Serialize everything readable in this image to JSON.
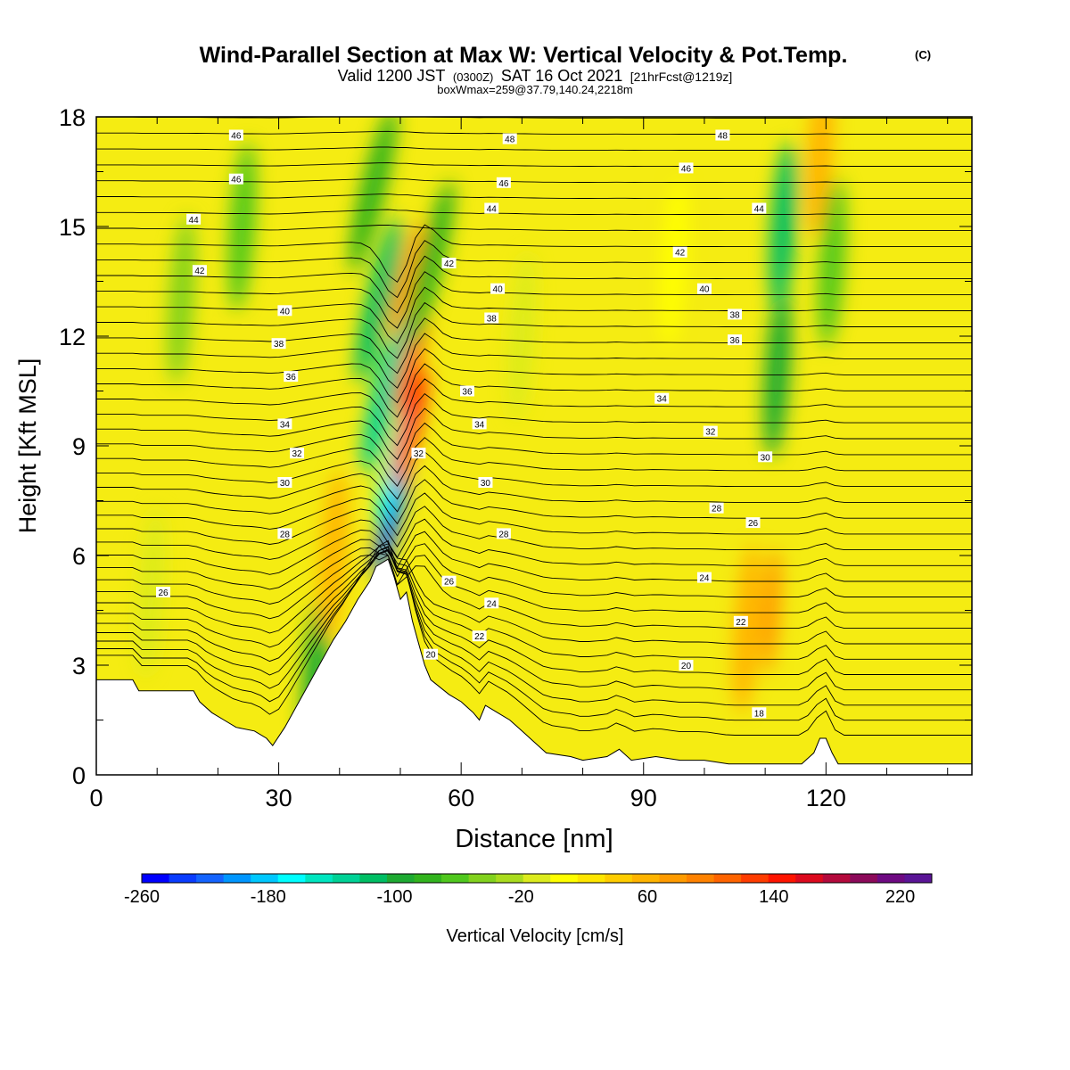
{
  "header": {
    "title": "Wind-Parallel Section at Max W: Vertical Velocity & Pot.Temp.",
    "copyright": "(C)",
    "valid_prefix": "Valid 1200 JST",
    "valid_utc": "(0300Z)",
    "valid_date": "SAT 16 Oct 2021",
    "forecast": "[21hrFcst@1219z]",
    "box_wmax": "boxWmax=259@37.79,140.24,2218m"
  },
  "chart_data": {
    "type": "heatmap",
    "xlabel": "Distance [nm]",
    "ylabel": "Height [Kft MSL]",
    "xlim": [
      0,
      144
    ],
    "ylim": [
      0,
      18
    ],
    "x_ticks": [
      0,
      30,
      60,
      90,
      120
    ],
    "y_ticks": [
      0,
      3,
      6,
      9,
      12,
      15,
      18
    ],
    "terrain_kft": {
      "x": [
        0,
        6,
        7,
        16,
        17,
        19,
        21,
        23,
        26,
        28,
        29,
        31,
        33,
        35,
        37,
        39,
        41,
        43,
        45,
        46,
        48,
        49,
        50,
        51,
        52,
        53,
        54,
        55,
        58,
        60,
        62,
        63,
        64,
        66,
        68,
        70,
        72,
        74,
        78,
        80,
        84,
        86,
        88,
        92,
        96,
        100,
        104,
        108,
        112,
        116,
        118,
        119,
        120,
        121,
        122,
        124,
        130,
        144
      ],
      "y": [
        2.6,
        2.6,
        2.3,
        2.3,
        2.0,
        1.7,
        1.5,
        1.3,
        1.2,
        1.0,
        0.8,
        1.3,
        1.9,
        2.5,
        3.1,
        3.7,
        4.2,
        4.8,
        5.3,
        5.7,
        5.9,
        5.4,
        4.8,
        5.0,
        4.2,
        3.6,
        3.0,
        2.6,
        2.2,
        2.0,
        1.7,
        1.5,
        1.9,
        1.7,
        1.5,
        1.2,
        0.9,
        0.6,
        0.5,
        0.4,
        0.5,
        0.7,
        0.4,
        0.5,
        0.4,
        0.4,
        0.3,
        0.3,
        0.3,
        0.3,
        0.6,
        1.0,
        1.0,
        0.6,
        0.3,
        0.3,
        0.3,
        0.3
      ]
    },
    "vertical_velocity_cells": [
      {
        "x": 48.5,
        "y": 7.0,
        "value": -220
      },
      {
        "x": 49.0,
        "y": 8.5,
        "value": -160
      },
      {
        "x": 47.5,
        "y": 10.5,
        "value": -110
      },
      {
        "x": 46.5,
        "y": 13.0,
        "value": -90
      },
      {
        "x": 45.5,
        "y": 16.0,
        "value": -60
      },
      {
        "x": 51.5,
        "y": 9.5,
        "value": 200
      },
      {
        "x": 52.0,
        "y": 11.5,
        "value": 170
      },
      {
        "x": 51.0,
        "y": 13.5,
        "value": 130
      },
      {
        "x": 55.0,
        "y": 14.0,
        "value": -50
      },
      {
        "x": 36.0,
        "y": 2.5,
        "value": -80
      },
      {
        "x": 39.0,
        "y": 6.0,
        "value": 100
      },
      {
        "x": 107.0,
        "y": 4.0,
        "value": 110
      },
      {
        "x": 111.0,
        "y": 4.5,
        "value": 130
      },
      {
        "x": 112.0,
        "y": 11.0,
        "value": -70
      },
      {
        "x": 113.0,
        "y": 15.0,
        "value": -90
      },
      {
        "x": 119.0,
        "y": 17.0,
        "value": 110
      },
      {
        "x": 121.0,
        "y": 14.0,
        "value": -40
      },
      {
        "x": 9.0,
        "y": 5.0,
        "value": 30
      },
      {
        "x": 24.0,
        "y": 15.0,
        "value": -30
      },
      {
        "x": 14.0,
        "y": 13.0,
        "value": -20
      },
      {
        "x": 70.0,
        "y": 12.0,
        "value": 30
      },
      {
        "x": 95.0,
        "y": 14.0,
        "value": 40
      }
    ],
    "theta_labels": [
      {
        "x": 23,
        "y": 17.5,
        "text": "46"
      },
      {
        "x": 23,
        "y": 16.3,
        "text": "46"
      },
      {
        "x": 16,
        "y": 15.2,
        "text": "44"
      },
      {
        "x": 17,
        "y": 13.8,
        "text": "42"
      },
      {
        "x": 31,
        "y": 12.7,
        "text": "40"
      },
      {
        "x": 30,
        "y": 11.8,
        "text": "38"
      },
      {
        "x": 32,
        "y": 10.9,
        "text": "36"
      },
      {
        "x": 31,
        "y": 9.6,
        "text": "34"
      },
      {
        "x": 33,
        "y": 8.8,
        "text": "32"
      },
      {
        "x": 31,
        "y": 8.0,
        "text": "30"
      },
      {
        "x": 31,
        "y": 6.6,
        "text": "28"
      },
      {
        "x": 11,
        "y": 5.0,
        "text": "26"
      },
      {
        "x": 68,
        "y": 17.4,
        "text": "48"
      },
      {
        "x": 67,
        "y": 16.2,
        "text": "46"
      },
      {
        "x": 65,
        "y": 15.5,
        "text": "44"
      },
      {
        "x": 58,
        "y": 14.0,
        "text": "42"
      },
      {
        "x": 66,
        "y": 13.3,
        "text": "40"
      },
      {
        "x": 65,
        "y": 12.5,
        "text": "38"
      },
      {
        "x": 61,
        "y": 10.5,
        "text": "36"
      },
      {
        "x": 63,
        "y": 9.6,
        "text": "34"
      },
      {
        "x": 53,
        "y": 8.8,
        "text": "32"
      },
      {
        "x": 64,
        "y": 8.0,
        "text": "30"
      },
      {
        "x": 67,
        "y": 6.6,
        "text": "28"
      },
      {
        "x": 58,
        "y": 5.3,
        "text": "26"
      },
      {
        "x": 65,
        "y": 4.7,
        "text": "24"
      },
      {
        "x": 63,
        "y": 3.8,
        "text": "22"
      },
      {
        "x": 55,
        "y": 3.3,
        "text": "20"
      },
      {
        "x": 103,
        "y": 17.5,
        "text": "48"
      },
      {
        "x": 97,
        "y": 16.6,
        "text": "46"
      },
      {
        "x": 109,
        "y": 15.5,
        "text": "44"
      },
      {
        "x": 96,
        "y": 14.3,
        "text": "42"
      },
      {
        "x": 100,
        "y": 13.3,
        "text": "40"
      },
      {
        "x": 105,
        "y": 12.6,
        "text": "38"
      },
      {
        "x": 105,
        "y": 11.9,
        "text": "36"
      },
      {
        "x": 93,
        "y": 10.3,
        "text": "34"
      },
      {
        "x": 101,
        "y": 9.4,
        "text": "32"
      },
      {
        "x": 110,
        "y": 8.7,
        "text": "30"
      },
      {
        "x": 102,
        "y": 7.3,
        "text": "28"
      },
      {
        "x": 108,
        "y": 6.9,
        "text": "26"
      },
      {
        "x": 100,
        "y": 5.4,
        "text": "24"
      },
      {
        "x": 106,
        "y": 4.2,
        "text": "22"
      },
      {
        "x": 97,
        "y": 3.0,
        "text": "20"
      },
      {
        "x": 109,
        "y": 1.7,
        "text": "18"
      }
    ],
    "colorbar": {
      "label": "Vertical Velocity [cm/s]",
      "range": [
        -260,
        240
      ],
      "step": 20,
      "tick_labels": [
        "-260",
        "-180",
        "-100",
        "-20",
        "60",
        "140",
        "220"
      ],
      "colors": [
        "#0000ff",
        "#0a3cff",
        "#1464ff",
        "#0096ff",
        "#00c8ff",
        "#00ffff",
        "#00e6c0",
        "#00d296",
        "#00be64",
        "#1eaa32",
        "#32b41e",
        "#50c81e",
        "#82d21e",
        "#aadc1e",
        "#dceb1e",
        "#ffff00",
        "#ffe600",
        "#ffcd00",
        "#ffb400",
        "#ff9b00",
        "#ff8200",
        "#ff6400",
        "#ff3c00",
        "#ff1400",
        "#dc0a1e",
        "#b40a3c",
        "#8c0a5a",
        "#6e0a82",
        "#5a1496"
      ]
    }
  }
}
